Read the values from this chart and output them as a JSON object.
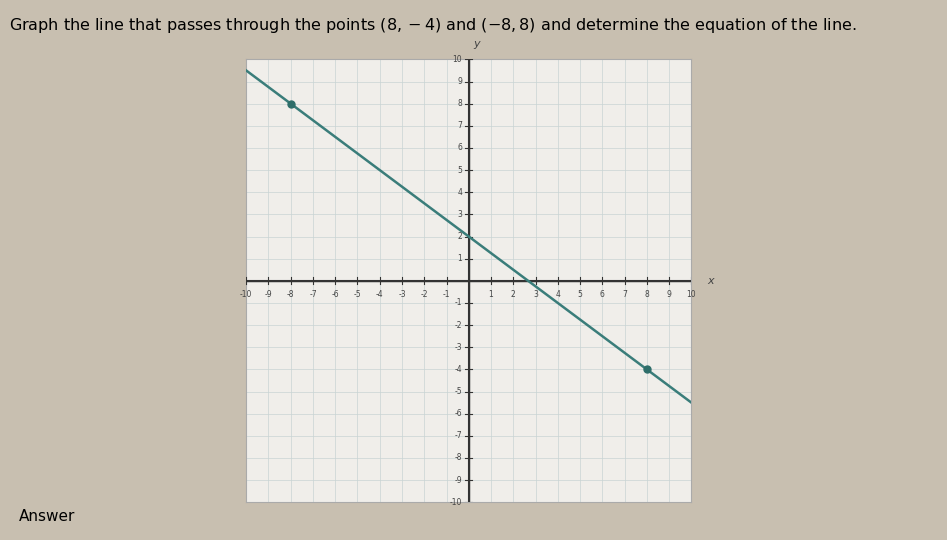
{
  "title": "Graph the line that passes through the points (8, −4) and (−8, 8) and determine the equation of the line.",
  "point1": [
    -8,
    8
  ],
  "point2": [
    8,
    -4
  ],
  "slope": -0.75,
  "intercept": 2.0,
  "xlim": [
    -10,
    10
  ],
  "ylim": [
    -10,
    10
  ],
  "line_color": "#3a7d7a",
  "point_color": "#2e6e6a",
  "grid_color": "#c8d4d4",
  "axis_color": "#333333",
  "fig_bg_color": "#c8bfb0",
  "plot_bg_color": "#f0eeea",
  "answer_label": "Answer",
  "figsize": [
    9.47,
    5.4
  ],
  "dpi": 100
}
